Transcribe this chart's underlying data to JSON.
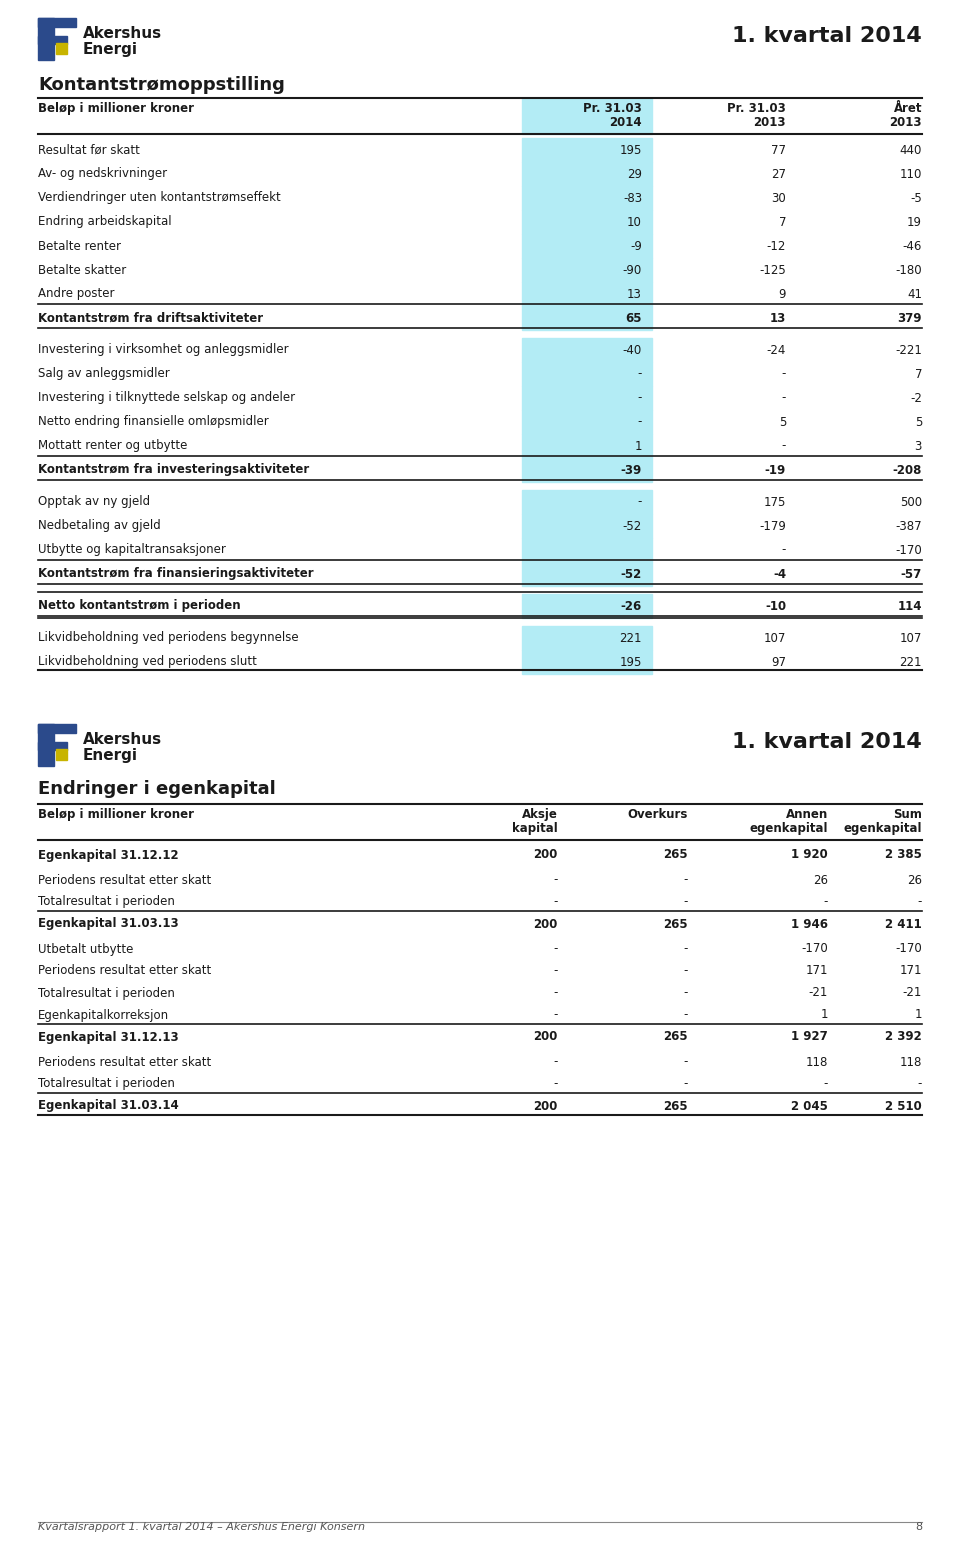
{
  "page_title": "1. kvartal 2014",
  "logo_line1": "Akershus",
  "logo_line2": "Energi",
  "bg_color": "#ffffff",
  "text_color": "#1a1a1a",
  "highlight_col_color": "#b3ecf5",
  "section1_title": "Kontantstrømoppstilling",
  "section1_header": [
    "Beløp i millioner kroner",
    "Pr. 31.03\n2014",
    "Pr. 31.03\n2013",
    "Året\n2013"
  ],
  "section1_rows": [
    {
      "label": "Resultat før skatt",
      "v1": "195",
      "v2": "77",
      "v3": "440",
      "bold": false
    },
    {
      "label": "Av- og nedskrivninger",
      "v1": "29",
      "v2": "27",
      "v3": "110",
      "bold": false
    },
    {
      "label": "Verdiendringer uten kontantstrømseffekt",
      "v1": "-83",
      "v2": "30",
      "v3": "-5",
      "bold": false
    },
    {
      "label": "Endring arbeidskapital",
      "v1": "10",
      "v2": "7",
      "v3": "19",
      "bold": false
    },
    {
      "label": "Betalte renter",
      "v1": "-9",
      "v2": "-12",
      "v3": "-46",
      "bold": false
    },
    {
      "label": "Betalte skatter",
      "v1": "-90",
      "v2": "-125",
      "v3": "-180",
      "bold": false
    },
    {
      "label": "Andre poster",
      "v1": "13",
      "v2": "9",
      "v3": "41",
      "bold": false
    },
    {
      "label": "Kontantstrøm fra driftsaktiviteter",
      "v1": "65",
      "v2": "13",
      "v3": "379",
      "bold": true,
      "section_end": true
    },
    {
      "label": "Investering i virksomhet og anleggsmidler",
      "v1": "-40",
      "v2": "-24",
      "v3": "-221",
      "bold": false
    },
    {
      "label": "Salg av anleggsmidler",
      "v1": "-",
      "v2": "-",
      "v3": "7",
      "bold": false
    },
    {
      "label": "Investering i tilknyttede selskap og andeler",
      "v1": "-",
      "v2": "-",
      "v3": "-2",
      "bold": false
    },
    {
      "label": "Netto endring finansielle omløpsmidler",
      "v1": "-",
      "v2": "5",
      "v3": "5",
      "bold": false
    },
    {
      "label": "Mottatt renter og utbytte",
      "v1": "1",
      "v2": "-",
      "v3": "3",
      "bold": false
    },
    {
      "label": "Kontantstrøm fra investeringsaktiviteter",
      "v1": "-39",
      "v2": "-19",
      "v3": "-208",
      "bold": true,
      "section_end": true
    },
    {
      "label": "Opptak av ny gjeld",
      "v1": "-",
      "v2": "175",
      "v3": "500",
      "bold": false
    },
    {
      "label": "Nedbetaling av gjeld",
      "v1": "-52",
      "v2": "-179",
      "v3": "-387",
      "bold": false
    },
    {
      "label": "Utbytte og kapitaltransaksjoner",
      "v1": "",
      "v2": "-",
      "v3": "-170",
      "bold": false
    },
    {
      "label": "Kontantstrøm fra finansieringsaktiviteter",
      "v1": "-52",
      "v2": "-4",
      "v3": "-57",
      "bold": true,
      "section_end": true
    },
    {
      "label": "Netto kontantstrøm i perioden",
      "v1": "-26",
      "v2": "-10",
      "v3": "114",
      "bold": true,
      "double_line": true,
      "section_end": true
    },
    {
      "label": "Likvidbeholdning ved periodens begynnelse",
      "v1": "221",
      "v2": "107",
      "v3": "107",
      "bold": false
    },
    {
      "label": "Likvidbeholdning ved periodens slutt",
      "v1": "195",
      "v2": "97",
      "v3": "221",
      "bold": false
    }
  ],
  "section2_title": "Endringer i egenkapital",
  "section2_header": [
    "Beløp i millioner kroner",
    "Aksje\nkapital",
    "Overkurs",
    "Annen\negenkapital",
    "Sum\negenkapital"
  ],
  "section2_rows": [
    {
      "label": "Egenkapital 31.12.12",
      "v1": "200",
      "v2": "265",
      "v3": "1 920",
      "v4": "2 385",
      "bold": true,
      "top_line": true
    },
    {
      "label": "Periodens resultat etter skatt",
      "v1": "-",
      "v2": "-",
      "v3": "26",
      "v4": "26",
      "bold": false,
      "top_line": false
    },
    {
      "label": "Totalresultat i perioden",
      "v1": "-",
      "v2": "-",
      "v3": "-",
      "v4": "-",
      "bold": false,
      "top_line": false
    },
    {
      "label": "Egenkapital 31.03.13",
      "v1": "200",
      "v2": "265",
      "v3": "1 946",
      "v4": "2 411",
      "bold": true,
      "top_line": true
    },
    {
      "label": "Utbetalt utbytte",
      "v1": "-",
      "v2": "-",
      "v3": "-170",
      "v4": "-170",
      "bold": false,
      "top_line": false
    },
    {
      "label": "Periodens resultat etter skatt",
      "v1": "-",
      "v2": "-",
      "v3": "171",
      "v4": "171",
      "bold": false,
      "top_line": false
    },
    {
      "label": "Totalresultat i perioden",
      "v1": "-",
      "v2": "-",
      "v3": "-21",
      "v4": "-21",
      "bold": false,
      "top_line": false
    },
    {
      "label": "Egenkapitalkorreksjon",
      "v1": "-",
      "v2": "-",
      "v3": "1",
      "v4": "1",
      "bold": false,
      "top_line": false
    },
    {
      "label": "Egenkapital 31.12.13",
      "v1": "200",
      "v2": "265",
      "v3": "1 927",
      "v4": "2 392",
      "bold": true,
      "top_line": true
    },
    {
      "label": "Periodens resultat etter skatt",
      "v1": "-",
      "v2": "-",
      "v3": "118",
      "v4": "118",
      "bold": false,
      "top_line": false
    },
    {
      "label": "Totalresultat i perioden",
      "v1": "-",
      "v2": "-",
      "v3": "-",
      "v4": "-",
      "bold": false,
      "top_line": false
    },
    {
      "label": "Egenkapital 31.03.14",
      "v1": "200",
      "v2": "265",
      "v3": "2 045",
      "v4": "2 510",
      "bold": true,
      "top_line": true
    }
  ],
  "footer_text": "Kvartalsrapport 1. kvartal 2014 – Akershus Energi Konsern",
  "footer_page": "8",
  "logo_blue": "#2b4a8b",
  "logo_yellow": "#c8b400"
}
